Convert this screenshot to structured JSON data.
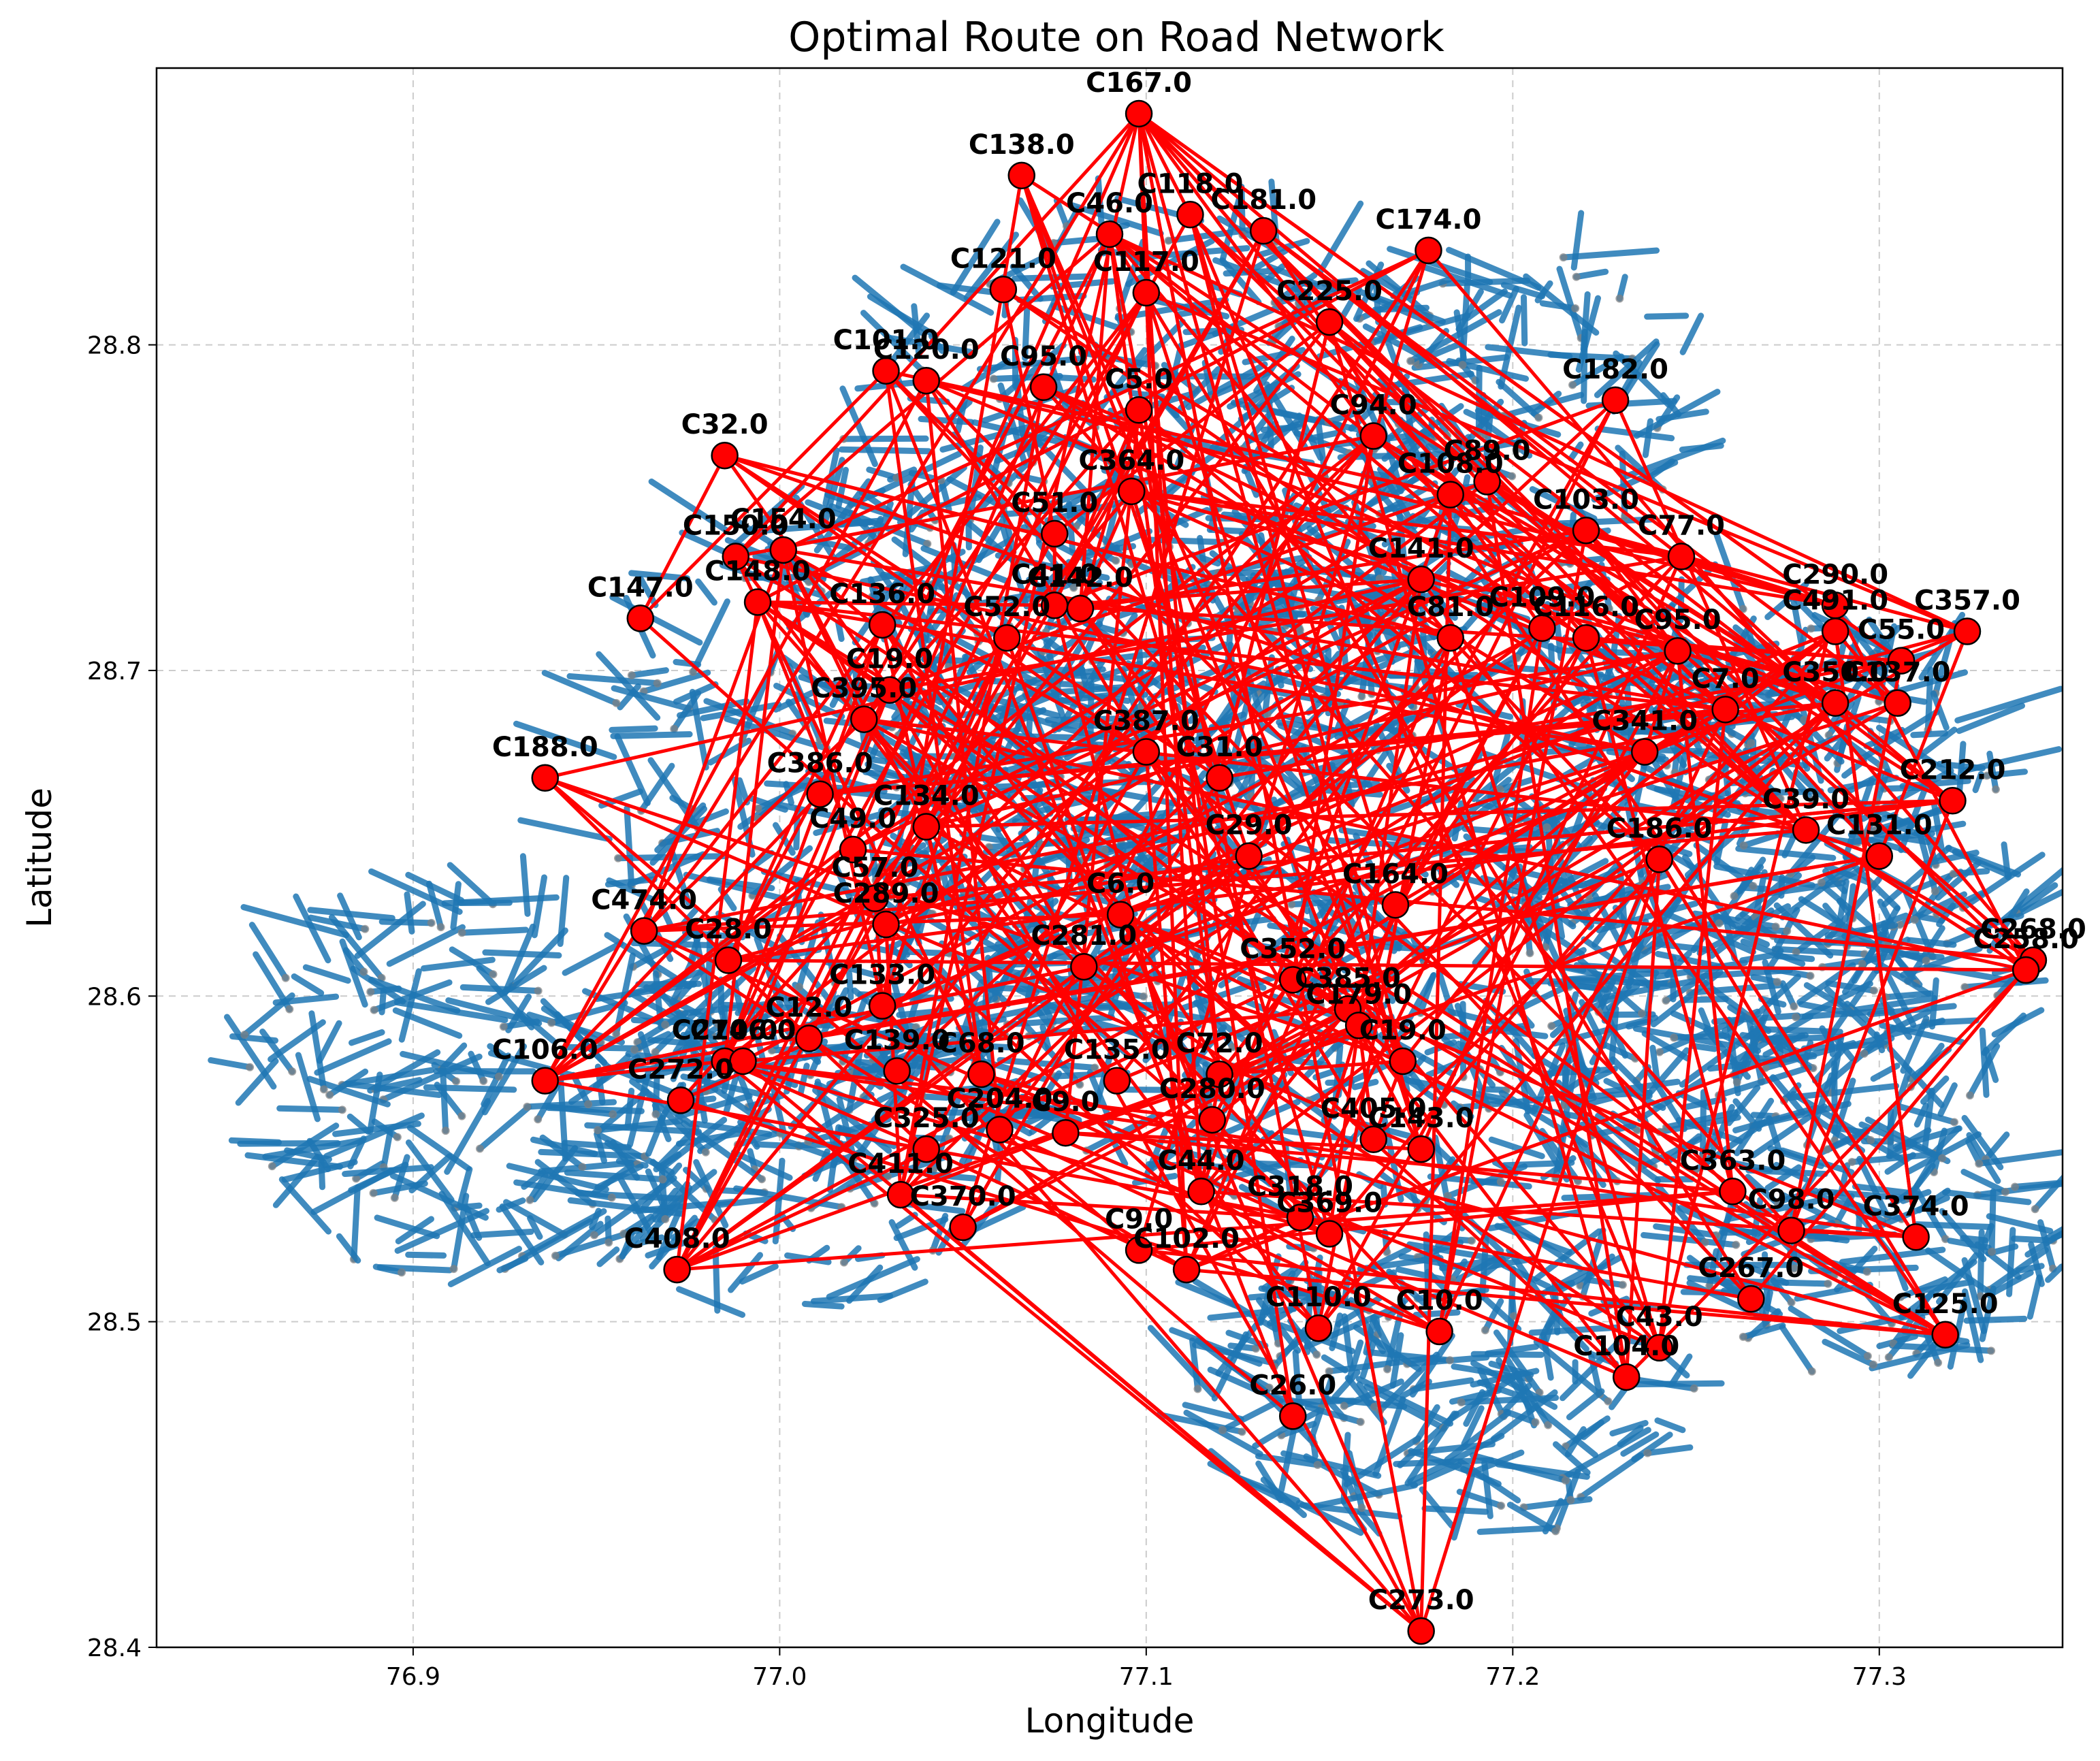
{
  "chart_data": {
    "type": "scatter",
    "title": "Optimal Route on Road Network",
    "xlabel": "Longitude",
    "ylabel": "Latitude",
    "xlim": [
      76.83,
      77.35
    ],
    "ylim": [
      28.4,
      28.885
    ],
    "xticks": [
      "76.9",
      "77.0",
      "77.1",
      "77.2",
      "77.3"
    ],
    "yticks": [
      "28.4",
      "28.5",
      "28.6",
      "28.7",
      "28.8"
    ],
    "grid": true,
    "colors": {
      "road_network": "#1f77b4",
      "road_edges": "#808080",
      "route": "#ff0000",
      "stop_fill": "#ff0000",
      "stop_edge": "#000000"
    },
    "stops": [
      {
        "label": "C167.0",
        "x": 77.098,
        "y": 28.871
      },
      {
        "label": "C138.0",
        "x": 77.066,
        "y": 28.852
      },
      {
        "label": "C118.0",
        "x": 77.112,
        "y": 28.84
      },
      {
        "label": "C181.0",
        "x": 77.132,
        "y": 28.835
      },
      {
        "label": "C46.0",
        "x": 77.09,
        "y": 28.834
      },
      {
        "label": "C174.0",
        "x": 77.177,
        "y": 28.829
      },
      {
        "label": "C121.0",
        "x": 77.061,
        "y": 28.817
      },
      {
        "label": "C225.0",
        "x": 77.15,
        "y": 28.807
      },
      {
        "label": "C117.0",
        "x": 77.1,
        "y": 28.816
      },
      {
        "label": "C101.0",
        "x": 77.029,
        "y": 28.792
      },
      {
        "label": "C120.0",
        "x": 77.04,
        "y": 28.789
      },
      {
        "label": "C95.0",
        "x": 77.072,
        "y": 28.787
      },
      {
        "label": "C5.0",
        "x": 77.098,
        "y": 28.78
      },
      {
        "label": "C182.0",
        "x": 77.228,
        "y": 28.783
      },
      {
        "label": "C32.0",
        "x": 76.985,
        "y": 28.766
      },
      {
        "label": "C94.0",
        "x": 77.162,
        "y": 28.772
      },
      {
        "label": "C364.0",
        "x": 77.096,
        "y": 28.755
      },
      {
        "label": "C89.0",
        "x": 77.193,
        "y": 28.758
      },
      {
        "label": "C108.0",
        "x": 77.183,
        "y": 28.754
      },
      {
        "label": "C103.0",
        "x": 77.22,
        "y": 28.743
      },
      {
        "label": "C77.0",
        "x": 77.246,
        "y": 28.735
      },
      {
        "label": "C51.0",
        "x": 77.075,
        "y": 28.742
      },
      {
        "label": "C150.0",
        "x": 76.988,
        "y": 28.735
      },
      {
        "label": "C154.0",
        "x": 77.001,
        "y": 28.737
      },
      {
        "label": "C148.0",
        "x": 76.994,
        "y": 28.721
      },
      {
        "label": "C41.0",
        "x": 77.075,
        "y": 28.72
      },
      {
        "label": "C147.0",
        "x": 76.962,
        "y": 28.716
      },
      {
        "label": "C136.0",
        "x": 77.028,
        "y": 28.714
      },
      {
        "label": "C52.0",
        "x": 77.062,
        "y": 28.71
      },
      {
        "label": "C142.0",
        "x": 77.082,
        "y": 28.719
      },
      {
        "label": "C141.0",
        "x": 77.175,
        "y": 28.728
      },
      {
        "label": "C81.0",
        "x": 77.183,
        "y": 28.71
      },
      {
        "label": "C109.0",
        "x": 77.208,
        "y": 28.713
      },
      {
        "label": "C116.0",
        "x": 77.22,
        "y": 28.71
      },
      {
        "label": "C95.0",
        "x": 77.245,
        "y": 28.706
      },
      {
        "label": "C290.0",
        "x": 77.288,
        "y": 28.72
      },
      {
        "label": "C491.0",
        "x": 77.288,
        "y": 28.712
      },
      {
        "label": "C55.0",
        "x": 77.306,
        "y": 28.703
      },
      {
        "label": "C357.0",
        "x": 77.324,
        "y": 28.712
      },
      {
        "label": "C19.0",
        "x": 77.03,
        "y": 28.694
      },
      {
        "label": "C395.0",
        "x": 77.023,
        "y": 28.685
      },
      {
        "label": "C7.0",
        "x": 77.258,
        "y": 28.688
      },
      {
        "label": "C350.0",
        "x": 77.288,
        "y": 28.69
      },
      {
        "label": "C137.0",
        "x": 77.305,
        "y": 28.69
      },
      {
        "label": "C386.0",
        "x": 77.011,
        "y": 28.662
      },
      {
        "label": "C188.0",
        "x": 76.936,
        "y": 28.667
      },
      {
        "label": "C387.0",
        "x": 77.1,
        "y": 28.675
      },
      {
        "label": "C341.0",
        "x": 77.236,
        "y": 28.675
      },
      {
        "label": "C49.0",
        "x": 77.02,
        "y": 28.645
      },
      {
        "label": "C31.0",
        "x": 77.12,
        "y": 28.667
      },
      {
        "label": "C212.0",
        "x": 77.32,
        "y": 28.66
      },
      {
        "label": "C39.0",
        "x": 77.28,
        "y": 28.651
      },
      {
        "label": "C131.0",
        "x": 77.3,
        "y": 28.643
      },
      {
        "label": "C134.0",
        "x": 77.04,
        "y": 28.652
      },
      {
        "label": "C186.0",
        "x": 77.24,
        "y": 28.642
      },
      {
        "label": "C29.0",
        "x": 77.128,
        "y": 28.643
      },
      {
        "label": "C164.0",
        "x": 77.168,
        "y": 28.628
      },
      {
        "label": "C57.0",
        "x": 77.026,
        "y": 28.63
      },
      {
        "label": "C474.0",
        "x": 76.963,
        "y": 28.62
      },
      {
        "label": "C28.0",
        "x": 76.986,
        "y": 28.611
      },
      {
        "label": "C289.0",
        "x": 77.029,
        "y": 28.622
      },
      {
        "label": "C6.0",
        "x": 77.093,
        "y": 28.625
      },
      {
        "label": "C268.0",
        "x": 77.342,
        "y": 28.611
      },
      {
        "label": "C258.0",
        "x": 77.34,
        "y": 28.608
      },
      {
        "label": "C133.0",
        "x": 77.028,
        "y": 28.597
      },
      {
        "label": "C12.0",
        "x": 77.008,
        "y": 28.587
      },
      {
        "label": "C281.0",
        "x": 77.083,
        "y": 28.609
      },
      {
        "label": "C352.0",
        "x": 77.14,
        "y": 28.605
      },
      {
        "label": "C385.0",
        "x": 77.155,
        "y": 28.596
      },
      {
        "label": "C106.0",
        "x": 76.936,
        "y": 28.574
      },
      {
        "label": "C270.0",
        "x": 76.985,
        "y": 28.58
      },
      {
        "label": "C146.0",
        "x": 76.99,
        "y": 28.58
      },
      {
        "label": "C272.0",
        "x": 76.973,
        "y": 28.568
      },
      {
        "label": "C139.0",
        "x": 77.032,
        "y": 28.577
      },
      {
        "label": "C68.0",
        "x": 77.055,
        "y": 28.576
      },
      {
        "label": "C135.0",
        "x": 77.092,
        "y": 28.574
      },
      {
        "label": "C179.0",
        "x": 77.158,
        "y": 28.591
      },
      {
        "label": "C19.0",
        "x": 77.17,
        "y": 28.58
      },
      {
        "label": "C72.0",
        "x": 77.12,
        "y": 28.576
      },
      {
        "label": "C280.0",
        "x": 77.118,
        "y": 28.562
      },
      {
        "label": "C325.0",
        "x": 77.04,
        "y": 28.553
      },
      {
        "label": "C204.0",
        "x": 77.06,
        "y": 28.559
      },
      {
        "label": "C9.0",
        "x": 77.078,
        "y": 28.558
      },
      {
        "label": "C405.0",
        "x": 77.162,
        "y": 28.556
      },
      {
        "label": "C143.0",
        "x": 77.175,
        "y": 28.553
      },
      {
        "label": "C411.0",
        "x": 77.033,
        "y": 28.539
      },
      {
        "label": "C44.0",
        "x": 77.115,
        "y": 28.54
      },
      {
        "label": "C370.0",
        "x": 77.05,
        "y": 28.529
      },
      {
        "label": "C318.0",
        "x": 77.142,
        "y": 28.532
      },
      {
        "label": "C369.0",
        "x": 77.15,
        "y": 28.527
      },
      {
        "label": "C363.0",
        "x": 77.26,
        "y": 28.54
      },
      {
        "label": "C98.0",
        "x": 77.276,
        "y": 28.528
      },
      {
        "label": "C374.0",
        "x": 77.31,
        "y": 28.526
      },
      {
        "label": "C408.0",
        "x": 76.972,
        "y": 28.516
      },
      {
        "label": "C9.0",
        "x": 77.098,
        "y": 28.522
      },
      {
        "label": "C102.0",
        "x": 77.111,
        "y": 28.516
      },
      {
        "label": "C267.0",
        "x": 77.265,
        "y": 28.507
      },
      {
        "label": "C110.0",
        "x": 77.147,
        "y": 28.498
      },
      {
        "label": "C10.0",
        "x": 77.18,
        "y": 28.497
      },
      {
        "label": "C43.0",
        "x": 77.24,
        "y": 28.492
      },
      {
        "label": "C125.0",
        "x": 77.318,
        "y": 28.496
      },
      {
        "label": "C104.0",
        "x": 77.231,
        "y": 28.483
      },
      {
        "label": "C26.0",
        "x": 77.14,
        "y": 28.471
      },
      {
        "label": "C273.0",
        "x": 77.175,
        "y": 28.405
      }
    ]
  }
}
